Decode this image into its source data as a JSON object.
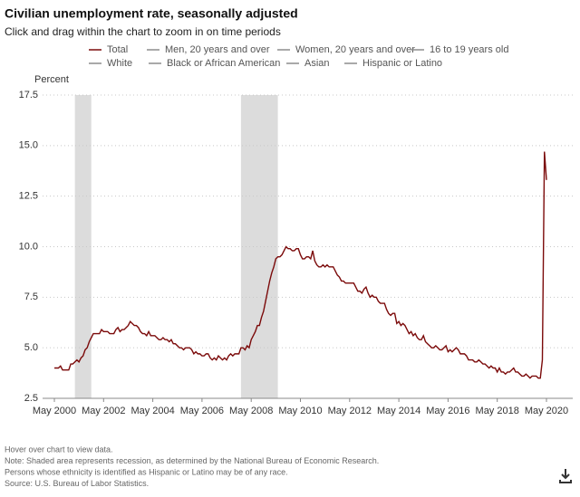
{
  "chart_data": {
    "type": "line",
    "title": "Civilian unemployment rate, seasonally adjusted",
    "subtitle": "Click and drag within the chart to zoom in on time periods",
    "y_label": "Percent",
    "ylim": [
      2.5,
      17.5
    ],
    "yticks": [
      2.5,
      5.0,
      7.5,
      10.0,
      12.5,
      15.0,
      17.5
    ],
    "xlim": [
      "2000-05",
      "2020-05"
    ],
    "xticks": [
      {
        "value": "2000-05",
        "label": "May 2000"
      },
      {
        "value": "2002-05",
        "label": "May 2002"
      },
      {
        "value": "2004-05",
        "label": "May 2004"
      },
      {
        "value": "2006-05",
        "label": "May 2006"
      },
      {
        "value": "2008-05",
        "label": "May 2008"
      },
      {
        "value": "2010-05",
        "label": "May 2010"
      },
      {
        "value": "2012-05",
        "label": "May 2012"
      },
      {
        "value": "2014-05",
        "label": "May 2014"
      },
      {
        "value": "2016-05",
        "label": "May 2016"
      },
      {
        "value": "2018-05",
        "label": "May 2018"
      },
      {
        "value": "2020-05",
        "label": "May 2020"
      }
    ],
    "grid": true,
    "recessions": [
      [
        "2001-03",
        "2001-11"
      ],
      [
        "2007-12",
        "2009-06"
      ]
    ],
    "recession_color": "#dcdcdc",
    "x": [
      "2000-05",
      "2000-06",
      "2000-07",
      "2000-08",
      "2000-09",
      "2000-10",
      "2000-11",
      "2000-12",
      "2001-01",
      "2001-02",
      "2001-03",
      "2001-04",
      "2001-05",
      "2001-06",
      "2001-07",
      "2001-08",
      "2001-09",
      "2001-10",
      "2001-11",
      "2001-12",
      "2002-01",
      "2002-02",
      "2002-03",
      "2002-04",
      "2002-05",
      "2002-06",
      "2002-07",
      "2002-08",
      "2002-09",
      "2002-10",
      "2002-11",
      "2002-12",
      "2003-01",
      "2003-02",
      "2003-03",
      "2003-04",
      "2003-05",
      "2003-06",
      "2003-07",
      "2003-08",
      "2003-09",
      "2003-10",
      "2003-11",
      "2003-12",
      "2004-01",
      "2004-02",
      "2004-03",
      "2004-04",
      "2004-05",
      "2004-06",
      "2004-07",
      "2004-08",
      "2004-09",
      "2004-10",
      "2004-11",
      "2004-12",
      "2005-01",
      "2005-02",
      "2005-03",
      "2005-04",
      "2005-05",
      "2005-06",
      "2005-07",
      "2005-08",
      "2005-09",
      "2005-10",
      "2005-11",
      "2005-12",
      "2006-01",
      "2006-02",
      "2006-03",
      "2006-04",
      "2006-05",
      "2006-06",
      "2006-07",
      "2006-08",
      "2006-09",
      "2006-10",
      "2006-11",
      "2006-12",
      "2007-01",
      "2007-02",
      "2007-03",
      "2007-04",
      "2007-05",
      "2007-06",
      "2007-07",
      "2007-08",
      "2007-09",
      "2007-10",
      "2007-11",
      "2007-12",
      "2008-01",
      "2008-02",
      "2008-03",
      "2008-04",
      "2008-05",
      "2008-06",
      "2008-07",
      "2008-08",
      "2008-09",
      "2008-10",
      "2008-11",
      "2008-12",
      "2009-01",
      "2009-02",
      "2009-03",
      "2009-04",
      "2009-05",
      "2009-06",
      "2009-07",
      "2009-08",
      "2009-09",
      "2009-10",
      "2009-11",
      "2009-12",
      "2010-01",
      "2010-02",
      "2010-03",
      "2010-04",
      "2010-05",
      "2010-06",
      "2010-07",
      "2010-08",
      "2010-09",
      "2010-10",
      "2010-11",
      "2010-12",
      "2011-01",
      "2011-02",
      "2011-03",
      "2011-04",
      "2011-05",
      "2011-06",
      "2011-07",
      "2011-08",
      "2011-09",
      "2011-10",
      "2011-11",
      "2011-12",
      "2012-01",
      "2012-02",
      "2012-03",
      "2012-04",
      "2012-05",
      "2012-06",
      "2012-07",
      "2012-08",
      "2012-09",
      "2012-10",
      "2012-11",
      "2012-12",
      "2013-01",
      "2013-02",
      "2013-03",
      "2013-04",
      "2013-05",
      "2013-06",
      "2013-07",
      "2013-08",
      "2013-09",
      "2013-10",
      "2013-11",
      "2013-12",
      "2014-01",
      "2014-02",
      "2014-03",
      "2014-04",
      "2014-05",
      "2014-06",
      "2014-07",
      "2014-08",
      "2014-09",
      "2014-10",
      "2014-11",
      "2014-12",
      "2015-01",
      "2015-02",
      "2015-03",
      "2015-04",
      "2015-05",
      "2015-06",
      "2015-07",
      "2015-08",
      "2015-09",
      "2015-10",
      "2015-11",
      "2015-12",
      "2016-01",
      "2016-02",
      "2016-03",
      "2016-04",
      "2016-05",
      "2016-06",
      "2016-07",
      "2016-08",
      "2016-09",
      "2016-10",
      "2016-11",
      "2016-12",
      "2017-01",
      "2017-02",
      "2017-03",
      "2017-04",
      "2017-05",
      "2017-06",
      "2017-07",
      "2017-08",
      "2017-09",
      "2017-10",
      "2017-11",
      "2017-12",
      "2018-01",
      "2018-02",
      "2018-03",
      "2018-04",
      "2018-05",
      "2018-06",
      "2018-07",
      "2018-08",
      "2018-09",
      "2018-10",
      "2018-11",
      "2018-12",
      "2019-01",
      "2019-02",
      "2019-03",
      "2019-04",
      "2019-05",
      "2019-06",
      "2019-07",
      "2019-08",
      "2019-09",
      "2019-10",
      "2019-11",
      "2019-12",
      "2020-01",
      "2020-02",
      "2020-03",
      "2020-04",
      "2020-05"
    ],
    "series": [
      {
        "name": "Total",
        "color": "#7b0a0a",
        "values": [
          4.0,
          4.0,
          4.0,
          4.1,
          3.9,
          3.9,
          3.9,
          3.9,
          4.2,
          4.2,
          4.3,
          4.4,
          4.3,
          4.5,
          4.6,
          4.9,
          5.0,
          5.3,
          5.5,
          5.7,
          5.7,
          5.7,
          5.7,
          5.9,
          5.8,
          5.8,
          5.8,
          5.7,
          5.7,
          5.7,
          5.9,
          6.0,
          5.8,
          5.9,
          5.9,
          6.0,
          6.1,
          6.3,
          6.2,
          6.1,
          6.1,
          6.0,
          5.8,
          5.7,
          5.7,
          5.6,
          5.8,
          5.6,
          5.6,
          5.6,
          5.5,
          5.4,
          5.4,
          5.5,
          5.4,
          5.4,
          5.3,
          5.4,
          5.2,
          5.2,
          5.1,
          5.0,
          5.0,
          4.9,
          5.0,
          5.0,
          5.0,
          4.9,
          4.7,
          4.8,
          4.7,
          4.7,
          4.6,
          4.6,
          4.7,
          4.7,
          4.5,
          4.4,
          4.5,
          4.4,
          4.6,
          4.5,
          4.4,
          4.5,
          4.4,
          4.6,
          4.7,
          4.6,
          4.7,
          4.7,
          4.7,
          5.0,
          5.0,
          4.9,
          5.1,
          5.0,
          5.4,
          5.6,
          5.8,
          6.1,
          6.1,
          6.5,
          6.8,
          7.3,
          7.8,
          8.3,
          8.7,
          9.0,
          9.4,
          9.5,
          9.5,
          9.6,
          9.8,
          10.0,
          9.9,
          9.9,
          9.8,
          9.8,
          9.9,
          9.9,
          9.6,
          9.4,
          9.4,
          9.5,
          9.5,
          9.4,
          9.8,
          9.3,
          9.1,
          9.0,
          9.0,
          9.1,
          9.0,
          9.1,
          9.0,
          9.0,
          9.0,
          8.8,
          8.6,
          8.5,
          8.3,
          8.3,
          8.2,
          8.2,
          8.2,
          8.2,
          8.2,
          8.0,
          7.8,
          7.8,
          7.7,
          7.9,
          8.0,
          7.7,
          7.5,
          7.6,
          7.5,
          7.5,
          7.3,
          7.2,
          7.2,
          7.2,
          6.9,
          6.7,
          6.6,
          6.7,
          6.7,
          6.2,
          6.3,
          6.1,
          6.2,
          6.1,
          5.9,
          5.7,
          5.8,
          5.6,
          5.7,
          5.5,
          5.4,
          5.4,
          5.6,
          5.3,
          5.2,
          5.1,
          5.0,
          5.0,
          5.1,
          5.0,
          4.9,
          4.9,
          5.0,
          5.1,
          4.8,
          4.9,
          4.8,
          4.9,
          5.0,
          4.9,
          4.7,
          4.7,
          4.7,
          4.6,
          4.4,
          4.4,
          4.4,
          4.3,
          4.3,
          4.4,
          4.3,
          4.2,
          4.2,
          4.1,
          4.0,
          4.1,
          4.0,
          4.0,
          3.8,
          4.0,
          3.8,
          3.8,
          3.7,
          3.8,
          3.8,
          3.9,
          4.0,
          3.8,
          3.8,
          3.7,
          3.6,
          3.6,
          3.7,
          3.6,
          3.5,
          3.6,
          3.6,
          3.6,
          3.5,
          3.5,
          4.4,
          14.7,
          13.3
        ]
      },
      {
        "name": "Men, 20 years and over",
        "color": "#8c8c8c"
      },
      {
        "name": "Women, 20 years and over",
        "color": "#8c8c8c"
      },
      {
        "name": "16 to 19 years old",
        "color": "#8c8c8c"
      },
      {
        "name": "White",
        "color": "#8c8c8c"
      },
      {
        "name": "Black or African American",
        "color": "#8c8c8c"
      },
      {
        "name": "Asian",
        "color": "#8c8c8c"
      },
      {
        "name": "Hispanic or Latino",
        "color": "#8c8c8c"
      }
    ],
    "notes": [
      "Hover over chart to view data.",
      "Note: Shaded area represents recession, as determined by the National Bureau of Economic Research.",
      "Persons whose ethnicity is identified as Hispanic or Latino may be of any race.",
      "Source: U.S. Bureau of Labor Statistics."
    ]
  }
}
